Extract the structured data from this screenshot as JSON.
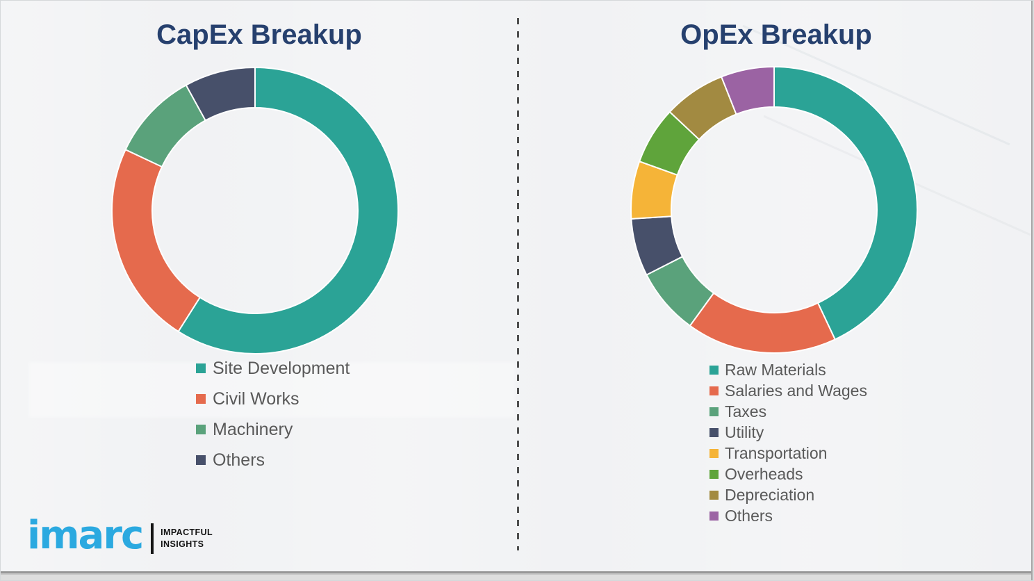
{
  "page": {
    "background_color": "#F1F2F4",
    "divider": {
      "style": "vertical dashed line",
      "color": "#4F4F4F"
    },
    "title_color": "#26406E",
    "legend_text_color": "#595959"
  },
  "chart_data": [
    {
      "type": "pie",
      "subtype": "donut",
      "title": "CapEx Breakup",
      "categories": [
        "Site Development",
        "Civil Works",
        "Machinery",
        "Others"
      ],
      "values": [
        59,
        23,
        10,
        8
      ],
      "values_note": "estimated percentages read from arc angles; chart shows no numeric labels",
      "colors": [
        "#2BA396",
        "#E56A4D",
        "#5AA27B",
        "#47506A"
      ],
      "start_angle_deg": 0,
      "direction": "clockwise",
      "donut_hole_ratio": 0.72,
      "segment_gap_color": "#FFFFFF",
      "legend_position": "below-left",
      "data_labels": false
    },
    {
      "type": "pie",
      "subtype": "donut",
      "title": "OpEx Breakup",
      "categories": [
        "Raw Materials",
        "Salaries and Wages",
        "Taxes",
        "Utility",
        "Transportation",
        "Overheads",
        "Depreciation",
        "Others"
      ],
      "values": [
        43,
        17,
        7.5,
        6.5,
        6.5,
        6.5,
        7,
        6
      ],
      "values_note": "estimated percentages read from arc angles; chart shows no numeric labels",
      "colors": [
        "#2BA396",
        "#E56A4D",
        "#5AA27B",
        "#47506A",
        "#F5B438",
        "#5FA43B",
        "#A28A41",
        "#9B63A3"
      ],
      "start_angle_deg": 0,
      "direction": "clockwise",
      "donut_hole_ratio": 0.72,
      "segment_gap_color": "#FFFFFF",
      "legend_position": "below-left",
      "data_labels": false
    }
  ],
  "logo": {
    "brand": "imarc",
    "brand_color": "#2BA9E0",
    "tagline_line1": "IMPACTFUL",
    "tagline_line2": "INSIGHTS"
  }
}
